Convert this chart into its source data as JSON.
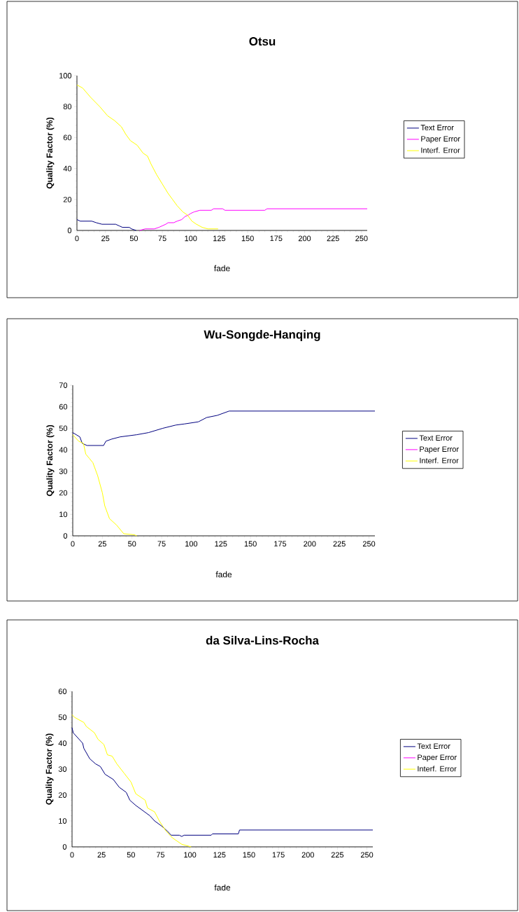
{
  "chart_data": [
    {
      "type": "line",
      "title": "Otsu",
      "xlabel": "fade",
      "ylabel": "Quality Factor (%)",
      "xlim": [
        0,
        255
      ],
      "ylim": [
        0,
        100
      ],
      "xticks": [
        0,
        25,
        50,
        75,
        100,
        125,
        150,
        175,
        200,
        225,
        250
      ],
      "yticks": [
        0,
        20,
        40,
        60,
        80,
        100
      ],
      "legend": "right",
      "series": [
        {
          "name": "Text Error",
          "color": "#000080",
          "x": [
            0,
            3,
            13,
            17,
            22,
            34,
            37,
            40,
            46,
            48,
            52
          ],
          "values": [
            7,
            6,
            6,
            5,
            4,
            4,
            3,
            2,
            2,
            1,
            0
          ]
        },
        {
          "name": "Paper Error",
          "color": "#ff00ff",
          "x": [
            55,
            60,
            68,
            72,
            75,
            78,
            80,
            85,
            88,
            92,
            95,
            98,
            100,
            103,
            108,
            118,
            120,
            128,
            130,
            165,
            167,
            255
          ],
          "values": [
            0,
            1,
            1,
            2,
            3,
            4,
            5,
            5,
            6,
            7,
            9,
            10,
            11,
            12,
            13,
            13,
            14,
            14,
            13,
            13,
            14,
            14
          ]
        },
        {
          "name": "Interf. Error",
          "color": "#ffff00",
          "x": [
            0,
            5,
            12,
            20,
            27,
            33,
            39,
            43,
            47,
            53,
            58,
            62,
            65,
            70,
            75,
            80,
            84,
            88,
            93,
            97,
            101,
            105,
            110,
            115,
            124
          ],
          "values": [
            94,
            92,
            86,
            80,
            74,
            71,
            67,
            62,
            58,
            55,
            50,
            48,
            43,
            36,
            30,
            24,
            20,
            16,
            12,
            10,
            6,
            4,
            2,
            1,
            1
          ]
        }
      ]
    },
    {
      "type": "line",
      "title": "Wu-Songde-Hanqing",
      "xlabel": "fade",
      "ylabel": "Quality Factor (%)",
      "xlim": [
        0,
        255
      ],
      "ylim": [
        0,
        70
      ],
      "xticks": [
        0,
        25,
        50,
        75,
        100,
        125,
        150,
        175,
        200,
        225,
        250
      ],
      "yticks": [
        0,
        10,
        20,
        30,
        40,
        50,
        60,
        70
      ],
      "legend": "right",
      "series": [
        {
          "name": "Text Error",
          "color": "#000080",
          "x": [
            0,
            3,
            6,
            8,
            12,
            26,
            28,
            33,
            40,
            54,
            64,
            76,
            87,
            94,
            106,
            113,
            122,
            132,
            255
          ],
          "values": [
            48,
            47,
            46,
            43,
            42,
            42,
            44,
            45,
            46,
            47,
            48,
            50,
            51.5,
            52,
            53,
            55,
            56,
            58,
            58
          ]
        },
        {
          "name": "Paper Error",
          "color": "#ff00ff"
        },
        {
          "name": "Interf. Error",
          "color": "#ffff00",
          "x": [
            0,
            5,
            9,
            11,
            14,
            17,
            21,
            25,
            27,
            31,
            37,
            43,
            52,
            54
          ],
          "values": [
            47,
            44,
            43,
            38,
            36,
            34,
            28,
            20,
            14,
            8,
            5,
            1,
            0.5,
            0
          ]
        }
      ]
    },
    {
      "type": "line",
      "title": "da Silva-Lins-Rocha",
      "xlabel": "fade",
      "ylabel": "Quality Factor (%)",
      "xlim": [
        0,
        255
      ],
      "ylim": [
        0,
        60
      ],
      "xticks": [
        0,
        25,
        50,
        75,
        100,
        125,
        150,
        175,
        200,
        225,
        250
      ],
      "yticks": [
        0,
        10,
        20,
        30,
        40,
        50,
        60
      ],
      "legend": "right",
      "series": [
        {
          "name": "Text Error",
          "color": "#000080",
          "x": [
            0,
            1,
            9,
            10,
            15,
            20,
            24,
            28,
            35,
            40,
            46,
            49,
            54,
            60,
            66,
            70,
            76,
            81,
            84,
            91,
            93,
            95,
            118,
            119,
            141,
            142,
            255
          ],
          "values": [
            46,
            44,
            40,
            38,
            34,
            32,
            31,
            28,
            26,
            23,
            21,
            18,
            16,
            14,
            12,
            10,
            8,
            6,
            4.5,
            4.5,
            4,
            4.5,
            4.5,
            5,
            5,
            6.5,
            6.5
          ]
        },
        {
          "name": "Paper Error",
          "color": "#ff00ff"
        },
        {
          "name": "Interf. Error",
          "color": "#ffff00",
          "x": [
            0,
            2,
            10,
            12,
            19,
            22,
            27,
            30,
            34,
            38,
            44,
            50,
            54,
            62,
            64,
            70,
            74,
            79,
            85,
            93,
            101
          ],
          "values": [
            51,
            50,
            48,
            46.5,
            44,
            41.5,
            39.5,
            35.5,
            35,
            32,
            28.5,
            25,
            20.5,
            18,
            15,
            13.5,
            10,
            6.5,
            3.5,
            1,
            0
          ]
        }
      ]
    }
  ]
}
